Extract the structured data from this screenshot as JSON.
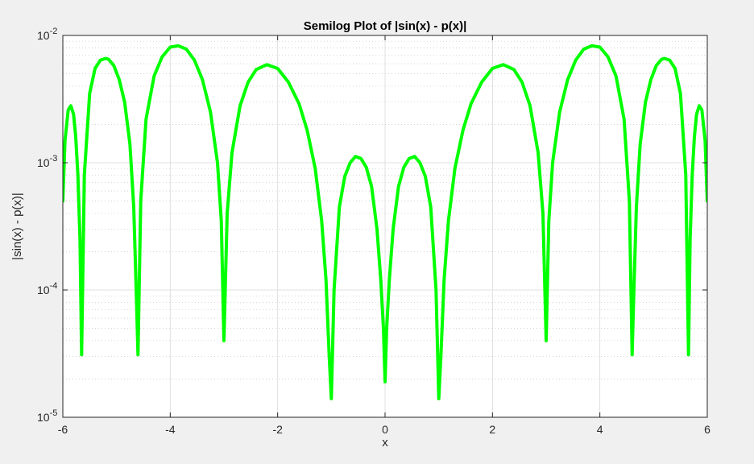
{
  "figure": {
    "background": "#f0f0f0",
    "axes_background": "#ffffff",
    "line_color": "#00ff00",
    "grid_color": "#d9d9d9",
    "minor_grid_color": "#cccccc",
    "axis_color": "#262626"
  },
  "chart_data": {
    "type": "line",
    "title": "Semilog Plot of |sin(x) - p(x)|",
    "xlabel": "x",
    "ylabel": "|sin(x) - p(x)|",
    "xscale": "linear",
    "yscale": "log",
    "xlim": [
      -6,
      6
    ],
    "ylim": [
      1e-05,
      0.01
    ],
    "xticks": [
      -6,
      -4,
      -2,
      0,
      2,
      4,
      6
    ],
    "xtick_labels": [
      "-6",
      "-4",
      "-2",
      "0",
      "2",
      "4",
      "6"
    ],
    "yticks": [
      1e-05,
      0.0001,
      0.001,
      0.01
    ],
    "ytick_labels": [
      {
        "base": "10",
        "exp": "-5"
      },
      {
        "base": "10",
        "exp": "-4"
      },
      {
        "base": "10",
        "exp": "-3"
      },
      {
        "base": "10",
        "exp": "-2"
      }
    ],
    "grid": true,
    "minor_grid_y": true,
    "series": [
      {
        "color": "#00ff00",
        "x": [
          -6.0,
          -5.96,
          -5.9,
          -5.85,
          -5.8,
          -5.76,
          -5.72,
          -5.68,
          -5.65,
          -5.6,
          -5.5,
          -5.4,
          -5.3,
          -5.2,
          -5.15,
          -5.05,
          -4.95,
          -4.85,
          -4.75,
          -4.68,
          -4.63,
          -4.6,
          -4.55,
          -4.45,
          -4.3,
          -4.15,
          -4.0,
          -3.85,
          -3.7,
          -3.55,
          -3.4,
          -3.25,
          -3.12,
          -3.05,
          -3.0,
          -2.94,
          -2.85,
          -2.7,
          -2.55,
          -2.4,
          -2.2,
          -2.0,
          -1.8,
          -1.6,
          -1.45,
          -1.3,
          -1.18,
          -1.1,
          -1.04,
          -1.0,
          -0.95,
          -0.85,
          -0.75,
          -0.65,
          -0.55,
          -0.45,
          -0.35,
          -0.25,
          -0.15,
          -0.08,
          -0.03,
          0.0,
          0.03,
          0.08,
          0.15,
          0.25,
          0.35,
          0.45,
          0.55,
          0.65,
          0.75,
          0.85,
          0.95,
          1.0,
          1.04,
          1.1,
          1.18,
          1.3,
          1.45,
          1.6,
          1.8,
          2.0,
          2.2,
          2.4,
          2.55,
          2.7,
          2.85,
          2.94,
          3.0,
          3.05,
          3.12,
          3.25,
          3.4,
          3.55,
          3.7,
          3.85,
          4.0,
          4.15,
          4.3,
          4.45,
          4.55,
          4.6,
          4.63,
          4.68,
          4.75,
          4.85,
          4.95,
          5.05,
          5.15,
          5.2,
          5.3,
          5.4,
          5.5,
          5.6,
          5.65,
          5.68,
          5.72,
          5.76,
          5.8,
          5.85,
          5.9,
          5.96,
          6.0
        ],
        "y": [
          0.0005,
          0.0015,
          0.0026,
          0.0028,
          0.0024,
          0.0016,
          0.0008,
          0.00025,
          3.1e-05,
          0.0008,
          0.0035,
          0.0055,
          0.0064,
          0.0066,
          0.0065,
          0.0058,
          0.0045,
          0.003,
          0.0014,
          0.00045,
          9e-05,
          3.1e-05,
          0.0005,
          0.0022,
          0.0048,
          0.0068,
          0.0081,
          0.0083,
          0.0078,
          0.0064,
          0.0045,
          0.0025,
          0.001,
          0.00035,
          4e-05,
          0.0004,
          0.0012,
          0.0028,
          0.0043,
          0.0054,
          0.0059,
          0.0055,
          0.0043,
          0.0029,
          0.0018,
          0.0009,
          0.00035,
          0.00012,
          3e-05,
          1.4e-05,
          0.0001,
          0.00045,
          0.00078,
          0.001,
          0.00112,
          0.00108,
          0.00092,
          0.00065,
          0.0003,
          0.00012,
          5e-05,
          1.9e-05,
          5e-05,
          0.00012,
          0.0003,
          0.00065,
          0.00092,
          0.00108,
          0.00112,
          0.001,
          0.00078,
          0.00045,
          0.0001,
          1.4e-05,
          3e-05,
          0.00012,
          0.00035,
          0.0009,
          0.0018,
          0.0029,
          0.0043,
          0.0055,
          0.0059,
          0.0054,
          0.0043,
          0.0028,
          0.0012,
          0.0004,
          4e-05,
          0.00035,
          0.001,
          0.0025,
          0.0045,
          0.0064,
          0.0078,
          0.0083,
          0.0081,
          0.0068,
          0.0048,
          0.0022,
          0.0005,
          3.1e-05,
          9e-05,
          0.00045,
          0.0014,
          0.003,
          0.0045,
          0.0058,
          0.0065,
          0.0066,
          0.0064,
          0.0055,
          0.0035,
          0.0008,
          3.1e-05,
          0.00025,
          0.0008,
          0.0016,
          0.0024,
          0.0028,
          0.0026,
          0.0015,
          0.0005
        ]
      }
    ]
  }
}
